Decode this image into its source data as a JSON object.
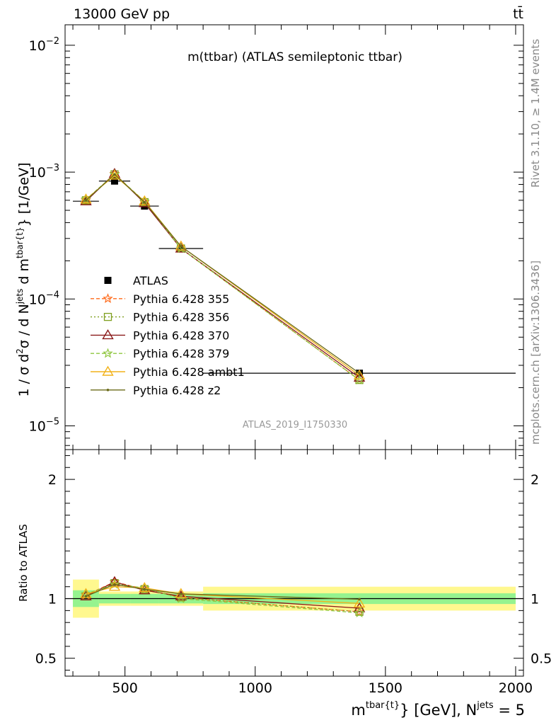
{
  "header": {
    "energy_label": "13000 GeV pp",
    "process_label": "tt̄"
  },
  "side_labels": {
    "rivet": "Rivet 3.1.10, ≥ 1.4M events",
    "mcplots": "mcplots.cern.ch [arXiv:1306.3436]"
  },
  "chart_data": {
    "type": "line",
    "title": "m(ttbar) (ATLAS semileptonic ttbar)",
    "analysis_id": "ATLAS_2019_I1750330",
    "xlim": [
      270,
      2030
    ],
    "x_ticks": [
      500,
      1000,
      1500,
      2000
    ],
    "x_tick_labels": [
      "500",
      "1000",
      "1500",
      "2000"
    ],
    "xlabel": {
      "main": "m",
      "sup": "tbar{t}",
      "after": "} [GeV], N",
      "sup2": "jets",
      "tail": " = 5"
    },
    "upper": {
      "yscale": "log",
      "ylim": [
        6.5e-06,
        0.0145
      ],
      "y_ticks": [
        {
          "value": 1e-05,
          "base": "10",
          "exp": "−5"
        },
        {
          "value": 0.0001,
          "base": "10",
          "exp": "−4"
        },
        {
          "value": 0.001,
          "base": "10",
          "exp": "−3"
        },
        {
          "value": 0.01,
          "base": "10",
          "exp": "−2"
        }
      ],
      "ylabel": {
        "a": "1 / σ d",
        "sup1": "2",
        "b": "σ / d N",
        "sup2": "jets",
        "c": " d m",
        "sup3": "tbar{t}",
        "d": "} [1/GeV]"
      }
    },
    "ratio": {
      "ylabel": "Ratio to ATLAS",
      "ylim": [
        0.35,
        2.25
      ],
      "y_ticks": [
        0.5,
        1,
        2
      ],
      "y_tick_labels": [
        "0.5",
        "1",
        "2"
      ],
      "bands": [
        {
          "xlo": 300,
          "xhi": 400,
          "inner": [
            0.93,
            1.07
          ],
          "outer": [
            0.84,
            1.16
          ]
        },
        {
          "xlo": 400,
          "xhi": 520,
          "inner": [
            0.96,
            1.04
          ],
          "outer": [
            0.94,
            1.06
          ]
        },
        {
          "xlo": 520,
          "xhi": 630,
          "inner": [
            0.96,
            1.04
          ],
          "outer": [
            0.94,
            1.06
          ]
        },
        {
          "xlo": 630,
          "xhi": 800,
          "inner": [
            0.96,
            1.04
          ],
          "outer": [
            0.94,
            1.06
          ]
        },
        {
          "xlo": 800,
          "xhi": 2000,
          "inner": [
            0.955,
            1.045
          ],
          "outer": [
            0.9,
            1.1
          ]
        }
      ]
    },
    "data": {
      "name": "ATLAS",
      "x": [
        350,
        460,
        575,
        715,
        1400
      ],
      "xerr": [
        50,
        60,
        55,
        85,
        600
      ],
      "y": [
        0.00059,
        0.00085,
        0.00054,
        0.00025,
        2.6e-05
      ],
      "color": "#000000"
    },
    "series": [
      {
        "name": "Pythia 6.428 355",
        "color": "#ff6a1a",
        "dash": "5,3",
        "marker": "star",
        "y": [
          0.0006,
          0.00097,
          0.00058,
          0.00025,
          2.3e-05
        ],
        "ratio": [
          1.03,
          1.14,
          1.08,
          1.01,
          0.89
        ]
      },
      {
        "name": "Pythia 6.428 356",
        "color": "#7f9f1f",
        "dash": "2,3",
        "marker": "square",
        "y": [
          0.0006,
          0.00096,
          0.00058,
          0.00025,
          2.3e-05
        ],
        "ratio": [
          1.02,
          1.13,
          1.08,
          1.01,
          0.89
        ]
      },
      {
        "name": "Pythia 6.428 370",
        "color": "#8b1a1a",
        "dash": "",
        "marker": "triangle",
        "y": [
          0.00059,
          0.00097,
          0.00057,
          0.00025,
          2.4e-05
        ],
        "ratio": [
          1.02,
          1.14,
          1.07,
          1.02,
          0.92
        ]
      },
      {
        "name": "Pythia 6.428 379",
        "color": "#8fc63f",
        "dash": "5,3",
        "marker": "star",
        "y": [
          0.00061,
          0.00096,
          0.00059,
          0.00025,
          2.3e-05
        ],
        "ratio": [
          1.04,
          1.12,
          1.09,
          1.0,
          0.88
        ]
      },
      {
        "name": "Pythia 6.428 ambt1",
        "color": "#f2b21a",
        "dash": "",
        "marker": "triangle",
        "y": [
          0.00061,
          0.00094,
          0.00059,
          0.00026,
          2.5e-05
        ],
        "ratio": [
          1.04,
          1.1,
          1.09,
          1.04,
          0.96
        ]
      },
      {
        "name": "Pythia 6.428 z2",
        "color": "#6b6b1a",
        "dash": "",
        "marker": "dot",
        "y": [
          0.0006,
          0.00096,
          0.00058,
          0.00026,
          2.6e-05
        ],
        "ratio": [
          1.02,
          1.12,
          1.08,
          1.04,
          0.995
        ]
      }
    ]
  }
}
